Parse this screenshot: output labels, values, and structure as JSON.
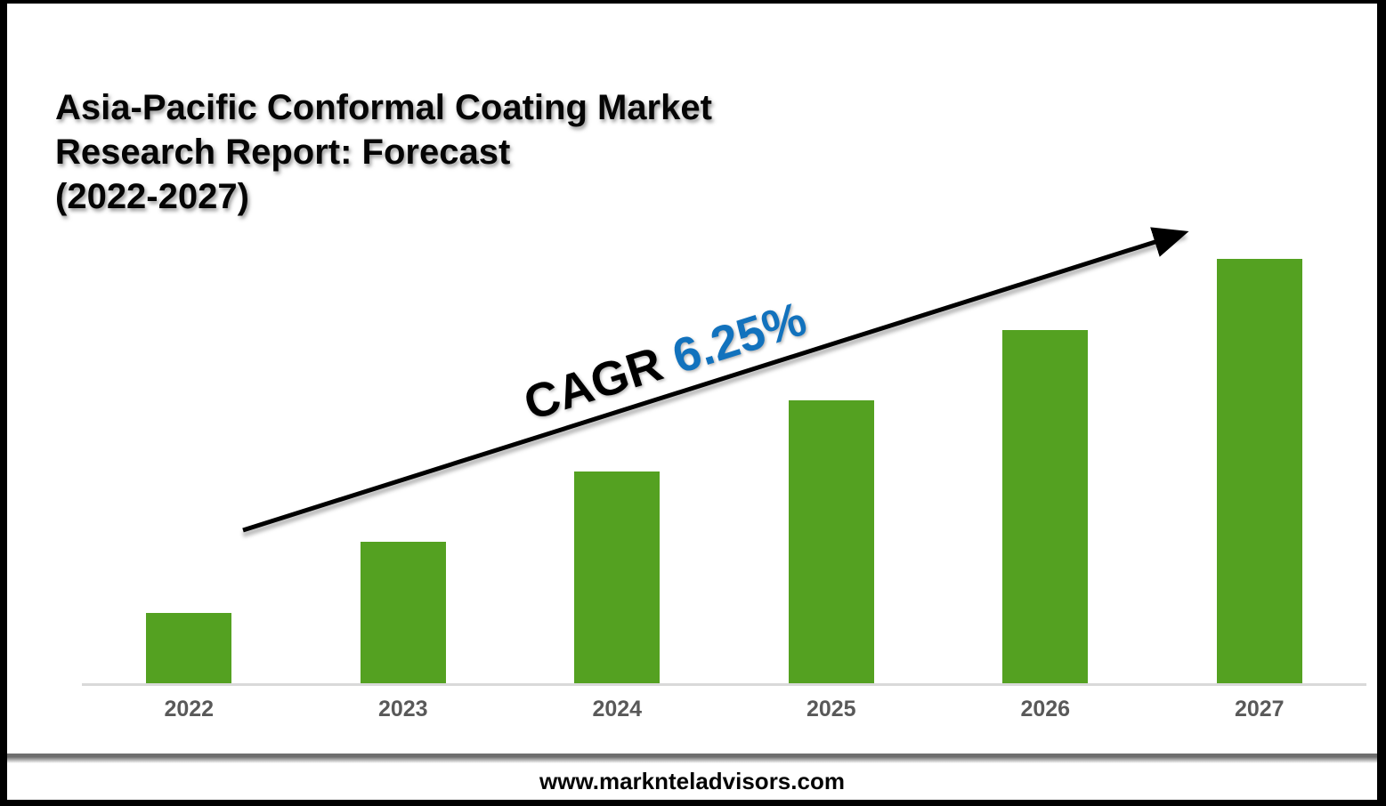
{
  "frame": {
    "border_color": "#000000",
    "background_color": "#ffffff"
  },
  "header": {
    "title_lines": [
      "Asia-Pacific Conformal Coating Market",
      "Research Report: Forecast",
      "(2022-2027)"
    ]
  },
  "annotation": {
    "cagr_label": "CAGR",
    "cagr_value": "6.25%",
    "cagr_label_color": "#000000",
    "cagr_value_color": "#1272BD",
    "arrow_color": "#000000"
  },
  "chart_data": {
    "type": "bar",
    "title": "Asia-Pacific Conformal Coating Market Research Report: Forecast (2022-2027)",
    "categories": [
      "2022",
      "2023",
      "2024",
      "2025",
      "2026",
      "2027"
    ],
    "values": [
      16.6,
      33.3,
      49.9,
      66.7,
      83.2,
      100
    ],
    "values_note": "relative bar heights in % of tallest bar; no numeric y-axis shown",
    "xlabel": "",
    "ylabel": "",
    "ylim": [
      0,
      100
    ],
    "grid": false,
    "legend": false,
    "bar_color": "#54A121",
    "baseline_color": "#D9D9D9",
    "tick_label_color": "#595959",
    "annotation": "CAGR 6.25%"
  },
  "footer": {
    "website": "www.marknteladvisors.com"
  }
}
